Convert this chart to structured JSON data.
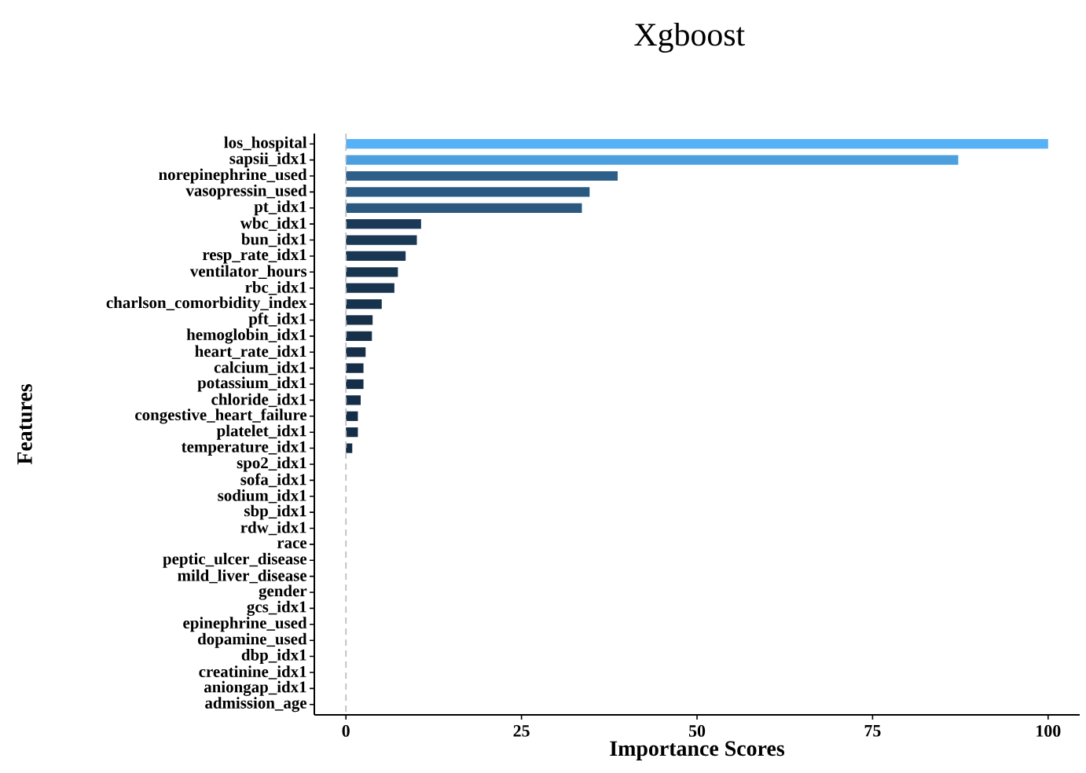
{
  "chart_data": {
    "type": "bar",
    "orientation": "horizontal",
    "title": "Xgboost",
    "xlabel": "Importance Scores",
    "ylabel": "Features",
    "categories": [
      "los_hospital",
      "sapsii_idx1",
      "norepinephrine_used",
      "vasopressin_used",
      "pt_idx1",
      "wbc_idx1",
      "bun_idx1",
      "resp_rate_idx1",
      "ventilator_hours",
      "rbc_idx1",
      "charlson_comorbidity_index",
      "pft_idx1",
      "hemoglobin_idx1",
      "heart_rate_idx1",
      "calcium_idx1",
      "potassium_idx1",
      "chloride_idx1",
      "congestive_heart_failure",
      "platelet_idx1",
      "temperature_idx1",
      "spo2_idx1",
      "sofa_idx1",
      "sodium_idx1",
      "sbp_idx1",
      "rdw_idx1",
      "race",
      "peptic_ulcer_disease",
      "mild_liver_disease",
      "gender",
      "gcs_idx1",
      "epinephrine_used",
      "dopamine_used",
      "dbp_idx1",
      "creatinine_idx1",
      "aniongap_idx1",
      "admission_age"
    ],
    "values": [
      100,
      87.2,
      38.7,
      34.7,
      33.6,
      10.7,
      10.1,
      8.5,
      7.4,
      6.9,
      5.1,
      3.8,
      3.7,
      2.8,
      2.5,
      2.5,
      2.1,
      1.7,
      1.7,
      0.9,
      0,
      0,
      0,
      0,
      0,
      0,
      0,
      0,
      0,
      0,
      0,
      0,
      0,
      0,
      0,
      0
    ],
    "colors": [
      "#56b1f7",
      "#4da0e0",
      "#2d5f89",
      "#2a5981",
      "#2a587f",
      "#1a3956",
      "#1a3955",
      "#193652",
      "#183550",
      "#18344f",
      "#16324c",
      "#16304a",
      "#16304a",
      "#152f48",
      "#152e48",
      "#152e48",
      "#142e47",
      "#142d46",
      "#142d46",
      "#142c45",
      "#132b43",
      "#132b43",
      "#132b43",
      "#132b43",
      "#132b43",
      "#132b43",
      "#132b43",
      "#132b43",
      "#132b43",
      "#132b43",
      "#132b43",
      "#132b43",
      "#132b43",
      "#132b43",
      "#132b43",
      "#132b43"
    ],
    "xlim": [
      -4.5,
      104.5
    ],
    "xticks": [
      0,
      25,
      50,
      75,
      100
    ],
    "ref_lines": [
      {
        "axis": "x",
        "value": 0,
        "color": "#bebebe",
        "line_style": "dashed"
      }
    ],
    "grid": false
  }
}
